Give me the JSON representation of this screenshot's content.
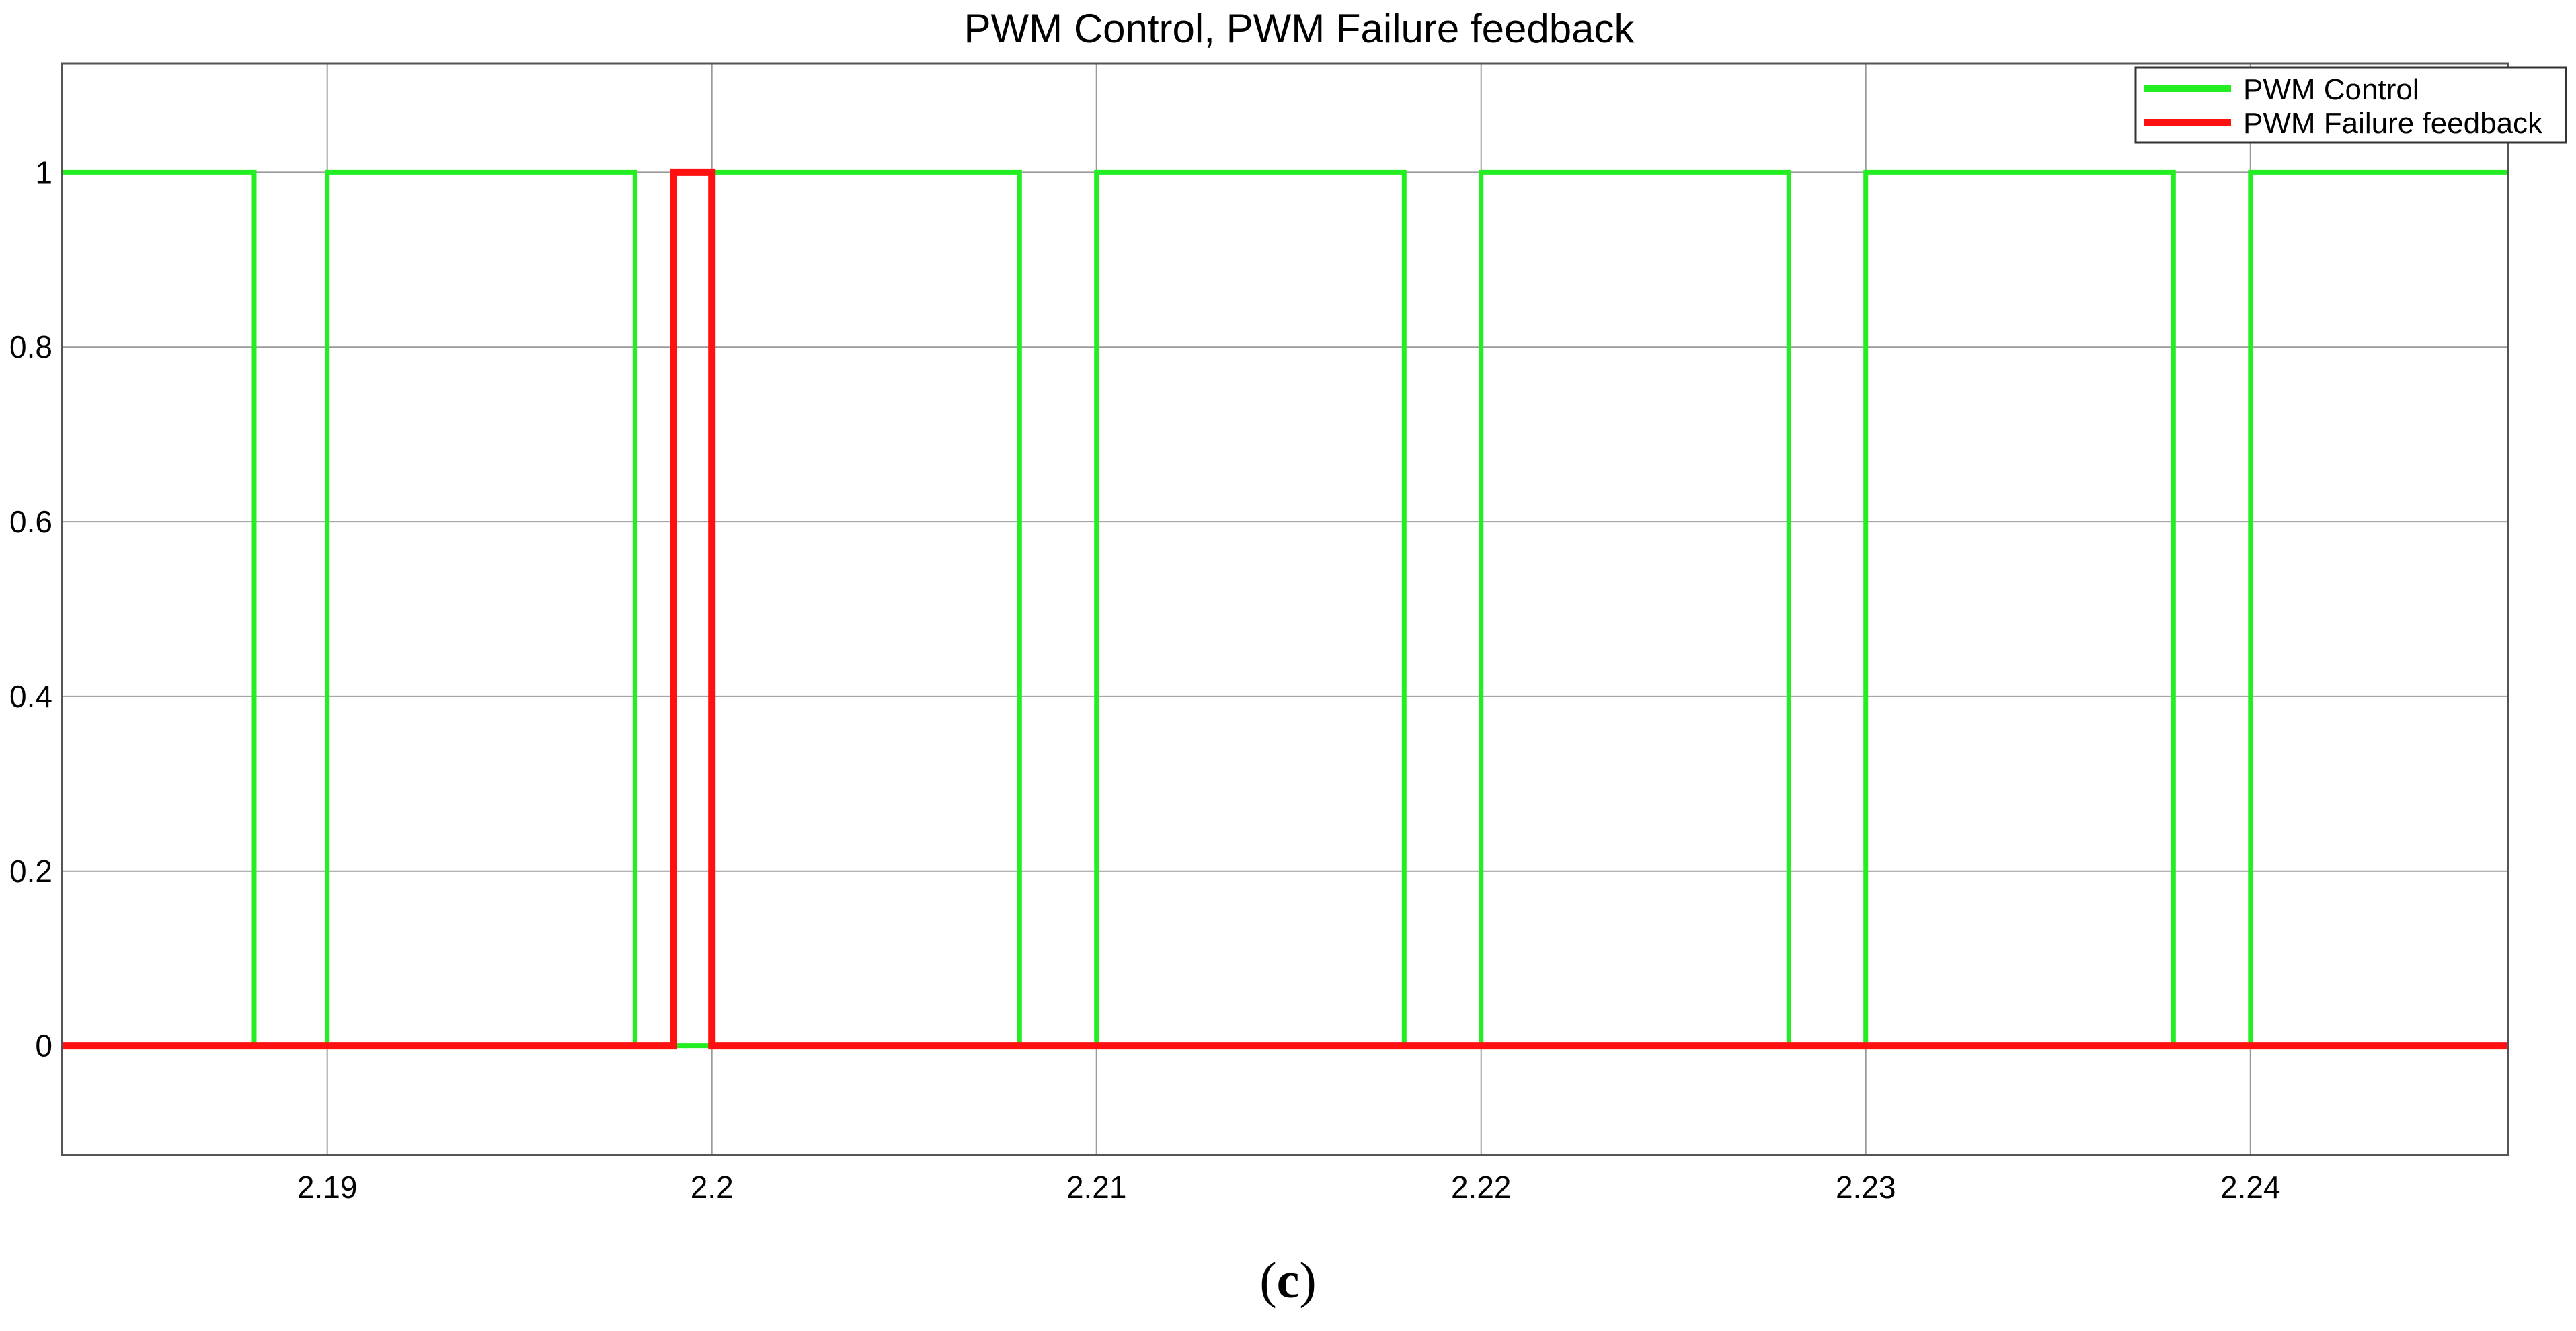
{
  "caption": {
    "open": "(",
    "letter": "c",
    "close": ")"
  },
  "chart_data": {
    "type": "line",
    "title": "PWM Control, PWM Failure feedback",
    "xlabel": "",
    "ylabel": "",
    "xlim": [
      2.1831,
      2.2467
    ],
    "ylim": [
      -0.125,
      1.125
    ],
    "xticks": [
      2.19,
      2.2,
      2.21,
      2.22,
      2.23,
      2.24
    ],
    "xtick_labels": [
      "2.19",
      "2.2",
      "2.21",
      "2.22",
      "2.23",
      "2.24"
    ],
    "yticks": [
      0,
      0.2,
      0.4,
      0.6,
      0.8,
      1
    ],
    "ytick_labels": [
      "0",
      "0.2",
      "0.4",
      "0.6",
      "0.8",
      "1"
    ],
    "grid": true,
    "legend_position": "top-right",
    "series": [
      {
        "name": "PWM Control",
        "color": "#22ee22",
        "step": true,
        "x": [
          2.1831,
          2.1881,
          2.1881,
          2.19,
          2.19,
          2.198,
          2.198,
          2.2,
          2.2,
          2.208,
          2.208,
          2.21,
          2.21,
          2.218,
          2.218,
          2.22,
          2.22,
          2.228,
          2.228,
          2.23,
          2.23,
          2.238,
          2.238,
          2.24,
          2.24,
          2.2467
        ],
        "y": [
          1,
          1,
          0,
          0,
          1,
          1,
          0,
          0,
          1,
          1,
          0,
          0,
          1,
          1,
          0,
          0,
          1,
          1,
          0,
          0,
          1,
          1,
          0,
          0,
          1,
          1
        ]
      },
      {
        "name": "PWM Failure feedback",
        "color": "#ff1111",
        "step": true,
        "x": [
          2.1831,
          2.199,
          2.199,
          2.2,
          2.2,
          2.2467
        ],
        "y": [
          0,
          0,
          1,
          1,
          0,
          0
        ]
      }
    ]
  }
}
